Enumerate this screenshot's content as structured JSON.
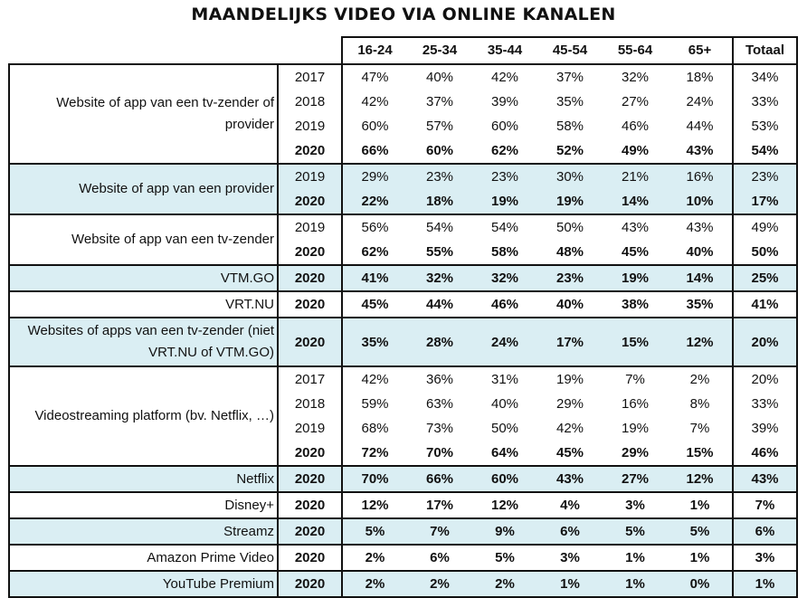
{
  "title": "MAANDELIJKS VIDEO VIA ONLINE KANALEN",
  "columns": [
    "16-24",
    "25-34",
    "35-44",
    "45-54",
    "55-64",
    "65+"
  ],
  "total_label": "Totaal",
  "colors": {
    "shade": "#daeef3",
    "border": "#111111"
  },
  "groups": [
    {
      "label": "Website of app van een tv-zender of provider",
      "shaded": false,
      "rows": [
        {
          "year": "2017",
          "values": [
            "47%",
            "40%",
            "42%",
            "37%",
            "32%",
            "18%"
          ],
          "total": "34%"
        },
        {
          "year": "2018",
          "values": [
            "42%",
            "37%",
            "39%",
            "35%",
            "27%",
            "24%"
          ],
          "total": "33%"
        },
        {
          "year": "2019",
          "values": [
            "60%",
            "57%",
            "60%",
            "58%",
            "46%",
            "44%"
          ],
          "total": "53%"
        },
        {
          "year": "2020",
          "values": [
            "66%",
            "60%",
            "62%",
            "52%",
            "49%",
            "43%"
          ],
          "total": "54%"
        }
      ]
    },
    {
      "label": "Website of app van een provider",
      "shaded": true,
      "rows": [
        {
          "year": "2019",
          "values": [
            "29%",
            "23%",
            "23%",
            "30%",
            "21%",
            "16%"
          ],
          "total": "23%"
        },
        {
          "year": "2020",
          "values": [
            "22%",
            "18%",
            "19%",
            "19%",
            "14%",
            "10%"
          ],
          "total": "17%"
        }
      ]
    },
    {
      "label": "Website of app van een tv-zender",
      "shaded": false,
      "rows": [
        {
          "year": "2019",
          "values": [
            "56%",
            "54%",
            "54%",
            "50%",
            "43%",
            "43%"
          ],
          "total": "49%"
        },
        {
          "year": "2020",
          "values": [
            "62%",
            "55%",
            "58%",
            "48%",
            "45%",
            "40%"
          ],
          "total": "50%"
        }
      ]
    },
    {
      "label": "VTM.GO",
      "shaded": true,
      "rows": [
        {
          "year": "2020",
          "values": [
            "41%",
            "32%",
            "32%",
            "23%",
            "19%",
            "14%"
          ],
          "total": "25%"
        }
      ]
    },
    {
      "label": "VRT.NU",
      "shaded": false,
      "rows": [
        {
          "year": "2020",
          "values": [
            "45%",
            "44%",
            "46%",
            "40%",
            "38%",
            "35%"
          ],
          "total": "41%"
        }
      ]
    },
    {
      "label": "Websites of apps van een tv-zender (niet VRT.NU of VTM.GO)",
      "shaded": true,
      "tall": true,
      "rows": [
        {
          "year": "2020",
          "values": [
            "35%",
            "28%",
            "24%",
            "17%",
            "15%",
            "12%"
          ],
          "total": "20%"
        }
      ]
    },
    {
      "label": "Videostreaming platform (bv. Netflix, …)",
      "shaded": false,
      "rows": [
        {
          "year": "2017",
          "values": [
            "42%",
            "36%",
            "31%",
            "19%",
            "7%",
            "2%"
          ],
          "total": "20%"
        },
        {
          "year": "2018",
          "values": [
            "59%",
            "63%",
            "40%",
            "29%",
            "16%",
            "8%"
          ],
          "total": "33%"
        },
        {
          "year": "2019",
          "values": [
            "68%",
            "73%",
            "50%",
            "42%",
            "19%",
            "7%"
          ],
          "total": "39%"
        },
        {
          "year": "2020",
          "values": [
            "72%",
            "70%",
            "64%",
            "45%",
            "29%",
            "15%"
          ],
          "total": "46%"
        }
      ]
    },
    {
      "label": "Netflix",
      "shaded": true,
      "rows": [
        {
          "year": "2020",
          "values": [
            "70%",
            "66%",
            "60%",
            "43%",
            "27%",
            "12%"
          ],
          "total": "43%"
        }
      ]
    },
    {
      "label": "Disney+",
      "shaded": false,
      "rows": [
        {
          "year": "2020",
          "values": [
            "12%",
            "17%",
            "12%",
            "4%",
            "3%",
            "1%"
          ],
          "total": "7%"
        }
      ]
    },
    {
      "label": "Streamz",
      "shaded": true,
      "rows": [
        {
          "year": "2020",
          "values": [
            "5%",
            "7%",
            "9%",
            "6%",
            "5%",
            "5%"
          ],
          "total": "6%"
        }
      ]
    },
    {
      "label": "Amazon Prime Video",
      "shaded": false,
      "rows": [
        {
          "year": "2020",
          "values": [
            "2%",
            "6%",
            "5%",
            "3%",
            "1%",
            "1%"
          ],
          "total": "3%"
        }
      ]
    },
    {
      "label": "YouTube Premium",
      "shaded": true,
      "rows": [
        {
          "year": "2020",
          "values": [
            "2%",
            "2%",
            "2%",
            "1%",
            "1%",
            "0%"
          ],
          "total": "1%"
        }
      ]
    }
  ]
}
